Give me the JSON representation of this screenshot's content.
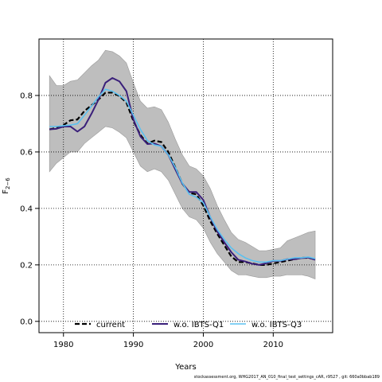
{
  "chart_data": {
    "type": "line",
    "xlabel": "Years",
    "ylabel": "F",
    "ylabel_sub": "2−6",
    "xlim": [
      1976.5,
      2018.5
    ],
    "ylim": [
      -0.04,
      1.0
    ],
    "xticks": [
      1980,
      1990,
      2000,
      2010
    ],
    "xtick_labels": [
      "1980",
      "1990",
      "2000",
      "2010"
    ],
    "yticks": [
      0.0,
      0.2,
      0.4,
      0.6,
      0.8
    ],
    "ytick_labels": [
      "0.0",
      "0.2",
      "0.4",
      "0.6",
      "0.8"
    ],
    "grid": "dotted",
    "legend_position": "bottom",
    "x": [
      1978,
      1979,
      1980,
      1981,
      1982,
      1983,
      1984,
      1985,
      1986,
      1987,
      1988,
      1989,
      1990,
      1991,
      1992,
      1993,
      1994,
      1995,
      1996,
      1997,
      1998,
      1999,
      2000,
      2001,
      2002,
      2003,
      2004,
      2005,
      2006,
      2007,
      2008,
      2009,
      2010,
      2011,
      2012,
      2013,
      2014,
      2015,
      2016
    ],
    "band": {
      "color": "#bebebe",
      "lower": [
        0.53,
        0.56,
        0.58,
        0.6,
        0.6,
        0.63,
        0.65,
        0.67,
        0.69,
        0.685,
        0.67,
        0.65,
        0.6,
        0.55,
        0.53,
        0.54,
        0.53,
        0.5,
        0.45,
        0.4,
        0.37,
        0.36,
        0.33,
        0.28,
        0.24,
        0.21,
        0.18,
        0.165,
        0.165,
        0.16,
        0.155,
        0.155,
        0.16,
        0.16,
        0.165,
        0.165,
        0.165,
        0.16,
        0.15
      ],
      "upper": [
        0.87,
        0.835,
        0.835,
        0.85,
        0.855,
        0.88,
        0.905,
        0.925,
        0.96,
        0.955,
        0.94,
        0.915,
        0.845,
        0.78,
        0.755,
        0.76,
        0.75,
        0.705,
        0.645,
        0.59,
        0.55,
        0.54,
        0.515,
        0.47,
        0.41,
        0.36,
        0.315,
        0.29,
        0.28,
        0.265,
        0.25,
        0.25,
        0.255,
        0.26,
        0.285,
        0.295,
        0.305,
        0.315,
        0.32
      ]
    },
    "series": [
      {
        "name": "current",
        "color": "#000000",
        "dash": "6,3",
        "width": 2.2,
        "values": [
          0.68,
          0.685,
          0.695,
          0.712,
          0.715,
          0.745,
          0.765,
          0.785,
          0.81,
          0.81,
          0.798,
          0.775,
          0.71,
          0.66,
          0.63,
          0.64,
          0.635,
          0.6,
          0.545,
          0.488,
          0.455,
          0.45,
          0.41,
          0.355,
          0.31,
          0.27,
          0.23,
          0.21,
          0.21,
          0.205,
          0.2,
          0.2,
          0.205,
          0.21,
          0.215,
          0.22,
          0.225,
          0.225,
          0.22
        ]
      },
      {
        "name": "w.o. IBTS-Q1",
        "color": "#3a1f7a",
        "dash": "",
        "width": 2.0,
        "values": [
          0.68,
          0.682,
          0.69,
          0.69,
          0.672,
          0.69,
          0.735,
          0.785,
          0.845,
          0.862,
          0.85,
          0.815,
          0.715,
          0.655,
          0.628,
          0.63,
          0.62,
          0.59,
          0.538,
          0.488,
          0.458,
          0.458,
          0.43,
          0.368,
          0.318,
          0.28,
          0.245,
          0.218,
          0.212,
          0.204,
          0.2,
          0.206,
          0.214,
          0.214,
          0.22,
          0.22,
          0.224,
          0.226,
          0.218
        ]
      },
      {
        "name": "w.o. IBTS-Q3",
        "color": "#5bc0f0",
        "dash": "",
        "width": 1.6,
        "values": [
          0.69,
          0.69,
          0.693,
          0.695,
          0.7,
          0.73,
          0.762,
          0.795,
          0.822,
          0.815,
          0.8,
          0.78,
          0.73,
          0.68,
          0.64,
          0.625,
          0.62,
          0.59,
          0.545,
          0.49,
          0.45,
          0.44,
          0.42,
          0.37,
          0.325,
          0.29,
          0.26,
          0.24,
          0.225,
          0.215,
          0.21,
          0.21,
          0.215,
          0.215,
          0.22,
          0.225,
          0.225,
          0.228,
          0.222
        ]
      }
    ]
  },
  "footer_text": "stockassessment.org, WHG2017_AN_010_final_test_settings_cAR, r9527 , git: 660a0bbab189"
}
